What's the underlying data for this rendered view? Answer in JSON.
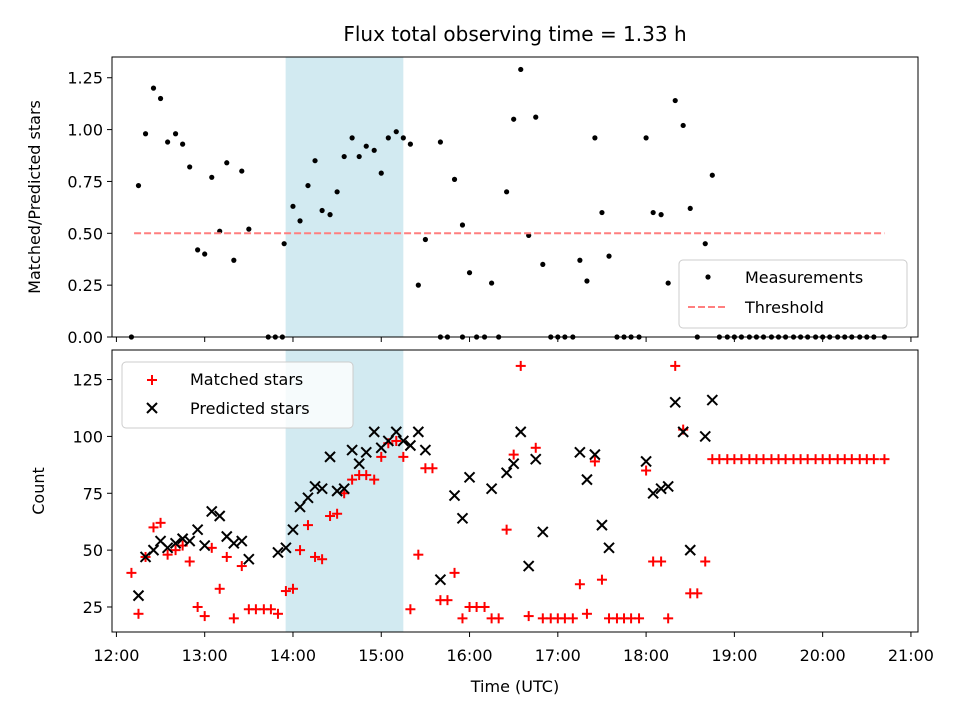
{
  "chart_data": {
    "title": "Flux total observing time = 1.33 h",
    "xlabel": "Time (UTC)",
    "x_unit": "hours UTC (decimal)",
    "x_ticks": [
      "12:00",
      "13:00",
      "14:00",
      "15:00",
      "16:00",
      "17:00",
      "18:00",
      "19:00",
      "20:00",
      "21:00"
    ],
    "highlight_band": {
      "start": "13:55",
      "end": "15:15",
      "color": "#add8e6"
    },
    "panels": [
      {
        "type": "scatter",
        "ylabel": "Matched/Predicted stars",
        "ylim": [
          0,
          1.35
        ],
        "y_ticks": [
          "0.00",
          "0.25",
          "0.50",
          "0.75",
          "1.00",
          "1.25"
        ],
        "legend": {
          "position": "lower-right",
          "entries": [
            "Measurements",
            "Threshold"
          ]
        },
        "series": [
          {
            "name": "Measurements",
            "marker": "dot",
            "color": "#000000",
            "x": [
              12.25,
              12.33,
              12.42,
              12.5,
              12.58,
              12.67,
              12.75,
              12.83,
              12.92,
              13.0,
              13.08,
              13.17,
              13.25,
              13.33,
              13.42,
              13.5,
              13.9,
              14.0,
              14.08,
              14.17,
              14.25,
              14.33,
              14.42,
              14.5,
              14.58,
              14.67,
              14.75,
              14.83,
              14.92,
              15.0,
              15.08,
              15.17,
              15.25,
              15.33,
              15.42,
              15.5,
              15.67,
              15.83,
              15.92,
              16.0,
              16.25,
              16.42,
              16.5,
              16.58,
              16.67,
              16.75,
              16.83,
              17.25,
              17.33,
              17.42,
              17.5,
              17.58,
              18.0,
              18.08,
              18.17,
              18.25,
              18.33,
              18.42,
              18.5,
              18.67,
              18.75
            ],
            "y": [
              0.73,
              0.98,
              1.2,
              1.15,
              0.94,
              0.98,
              0.93,
              0.82,
              0.42,
              0.4,
              0.77,
              0.51,
              0.84,
              0.37,
              0.8,
              0.52,
              0.45,
              0.63,
              0.56,
              0.73,
              0.85,
              0.61,
              0.59,
              0.7,
              0.87,
              0.96,
              0.87,
              0.92,
              0.9,
              0.79,
              0.96,
              0.99,
              0.96,
              0.93,
              0.25,
              0.47,
              0.94,
              0.76,
              0.54,
              0.31,
              0.26,
              0.7,
              1.05,
              1.29,
              0.49,
              1.06,
              0.35,
              0.37,
              0.27,
              0.96,
              0.6,
              0.39,
              0.96,
              0.6,
              0.59,
              0.26,
              1.14,
              1.02,
              0.62,
              0.45,
              0.78
            ]
          },
          {
            "name": "Measurements",
            "marker": "dot",
            "color": "#000000",
            "x": [
              12.17,
              13.72,
              13.8,
              13.88,
              15.67,
              15.75,
              15.92,
              16.08,
              16.17,
              16.33,
              16.92,
              17.0,
              17.08,
              17.17,
              17.67,
              17.75,
              17.83,
              17.92,
              18.58,
              18.83,
              18.92,
              19.0,
              19.08,
              19.17,
              19.25,
              19.33,
              19.42,
              19.5,
              19.58,
              19.67,
              19.75,
              19.83,
              19.92,
              20.0,
              20.08,
              20.17,
              20.25,
              20.33,
              20.42,
              20.5,
              20.58,
              20.7
            ],
            "y": [
              0,
              0,
              0,
              0,
              0,
              0,
              0,
              0,
              0,
              0,
              0,
              0,
              0,
              0,
              0,
              0,
              0,
              0,
              0,
              0,
              0,
              0,
              0,
              0,
              0,
              0,
              0,
              0,
              0,
              0,
              0,
              0,
              0,
              0,
              0,
              0,
              0,
              0,
              0,
              0,
              0,
              0
            ]
          },
          {
            "name": "Threshold",
            "line": "dashed",
            "color": "#ff7f7f",
            "x": [
              12.2,
              20.7
            ],
            "y": [
              0.5,
              0.5
            ]
          }
        ]
      },
      {
        "type": "scatter",
        "ylabel": "Count",
        "ylim": [
          14,
          138
        ],
        "y_ticks": [
          "25",
          "50",
          "75",
          "100",
          "125"
        ],
        "legend": {
          "position": "top-left",
          "entries": [
            "Matched stars",
            "Predicted stars"
          ]
        },
        "series": [
          {
            "name": "Matched stars",
            "marker": "plus",
            "color": "#ff0000",
            "x": [
              12.17,
              12.25,
              12.33,
              12.42,
              12.5,
              12.58,
              12.67,
              12.75,
              12.83,
              12.92,
              13.0,
              13.08,
              13.17,
              13.25,
              13.33,
              13.42,
              13.5,
              13.58,
              13.67,
              13.75,
              13.83,
              13.92,
              14.0,
              14.08,
              14.17,
              14.25,
              14.33,
              14.42,
              14.5,
              14.58,
              14.67,
              14.75,
              14.83,
              14.92,
              15.0,
              15.08,
              15.17,
              15.25,
              15.33,
              15.42,
              15.5,
              15.58,
              15.67,
              15.75,
              15.83,
              15.92,
              16.0,
              16.08,
              16.17,
              16.25,
              16.33,
              16.42,
              16.5,
              16.58,
              16.67,
              16.75,
              16.83,
              16.92,
              17.0,
              17.08,
              17.17,
              17.25,
              17.33,
              17.42,
              17.5,
              17.58,
              17.67,
              17.75,
              17.83,
              17.92,
              18.0,
              18.08,
              18.17,
              18.25,
              18.33,
              18.42,
              18.5,
              18.58,
              18.67,
              18.75,
              18.83,
              18.92,
              19.0,
              19.08,
              19.17,
              19.25,
              19.33,
              19.42,
              19.5,
              19.58,
              19.67,
              19.75,
              19.83,
              19.92,
              20.0,
              20.08,
              20.17,
              20.25,
              20.33,
              20.42,
              20.5,
              20.58,
              20.7
            ],
            "y": [
              40,
              22,
              47,
              60,
              62,
              48,
              50,
              52,
              45,
              25,
              21,
              51,
              33,
              47,
              20,
              43,
              24,
              24,
              24,
              24,
              22,
              32,
              33,
              50,
              61,
              47,
              46,
              65,
              66,
              75,
              81,
              83,
              83,
              81,
              91,
              97,
              98,
              91,
              24,
              48,
              86,
              86,
              28,
              28,
              40,
              20,
              25,
              25,
              25,
              20,
              20,
              59,
              92,
              131,
              21,
              95,
              20,
              20,
              20,
              20,
              20,
              35,
              22,
              89,
              37,
              20,
              20,
              20,
              20,
              20,
              85,
              45,
              45,
              20,
              131,
              103,
              31,
              31,
              45,
              90,
              90,
              90,
              90,
              90,
              90,
              90,
              90,
              90,
              90,
              90,
              90,
              90,
              90,
              90,
              90,
              90,
              90,
              90,
              90,
              90,
              90,
              90,
              90
            ]
          },
          {
            "name": "Predicted stars",
            "marker": "x",
            "color": "#000000",
            "x": [
              12.25,
              12.33,
              12.42,
              12.5,
              12.58,
              12.67,
              12.75,
              12.83,
              12.92,
              13.0,
              13.08,
              13.17,
              13.25,
              13.33,
              13.42,
              13.5,
              13.83,
              13.92,
              14.0,
              14.08,
              14.17,
              14.25,
              14.33,
              14.42,
              14.5,
              14.58,
              14.67,
              14.75,
              14.83,
              14.92,
              15.0,
              15.08,
              15.17,
              15.25,
              15.33,
              15.42,
              15.5,
              15.67,
              15.83,
              15.92,
              16.0,
              16.25,
              16.42,
              16.5,
              16.58,
              16.67,
              16.75,
              16.83,
              17.25,
              17.33,
              17.42,
              17.5,
              17.58,
              18.0,
              18.08,
              18.17,
              18.25,
              18.33,
              18.42,
              18.5,
              18.67,
              18.75
            ],
            "y": [
              30,
              47,
              50,
              54,
              51,
              53,
              55,
              54,
              59,
              52,
              67,
              65,
              56,
              53,
              54,
              46,
              49,
              51,
              59,
              69,
              73,
              78,
              77,
              91,
              76,
              77,
              94,
              88,
              93,
              102,
              95,
              98,
              102,
              98,
              96,
              102,
              94,
              37,
              74,
              64,
              82,
              77,
              84,
              88,
              102,
              43,
              90,
              58,
              93,
              81,
              92,
              61,
              51,
              89,
              75,
              77,
              78,
              115,
              102,
              50,
              100,
              116
            ]
          }
        ]
      }
    ]
  }
}
